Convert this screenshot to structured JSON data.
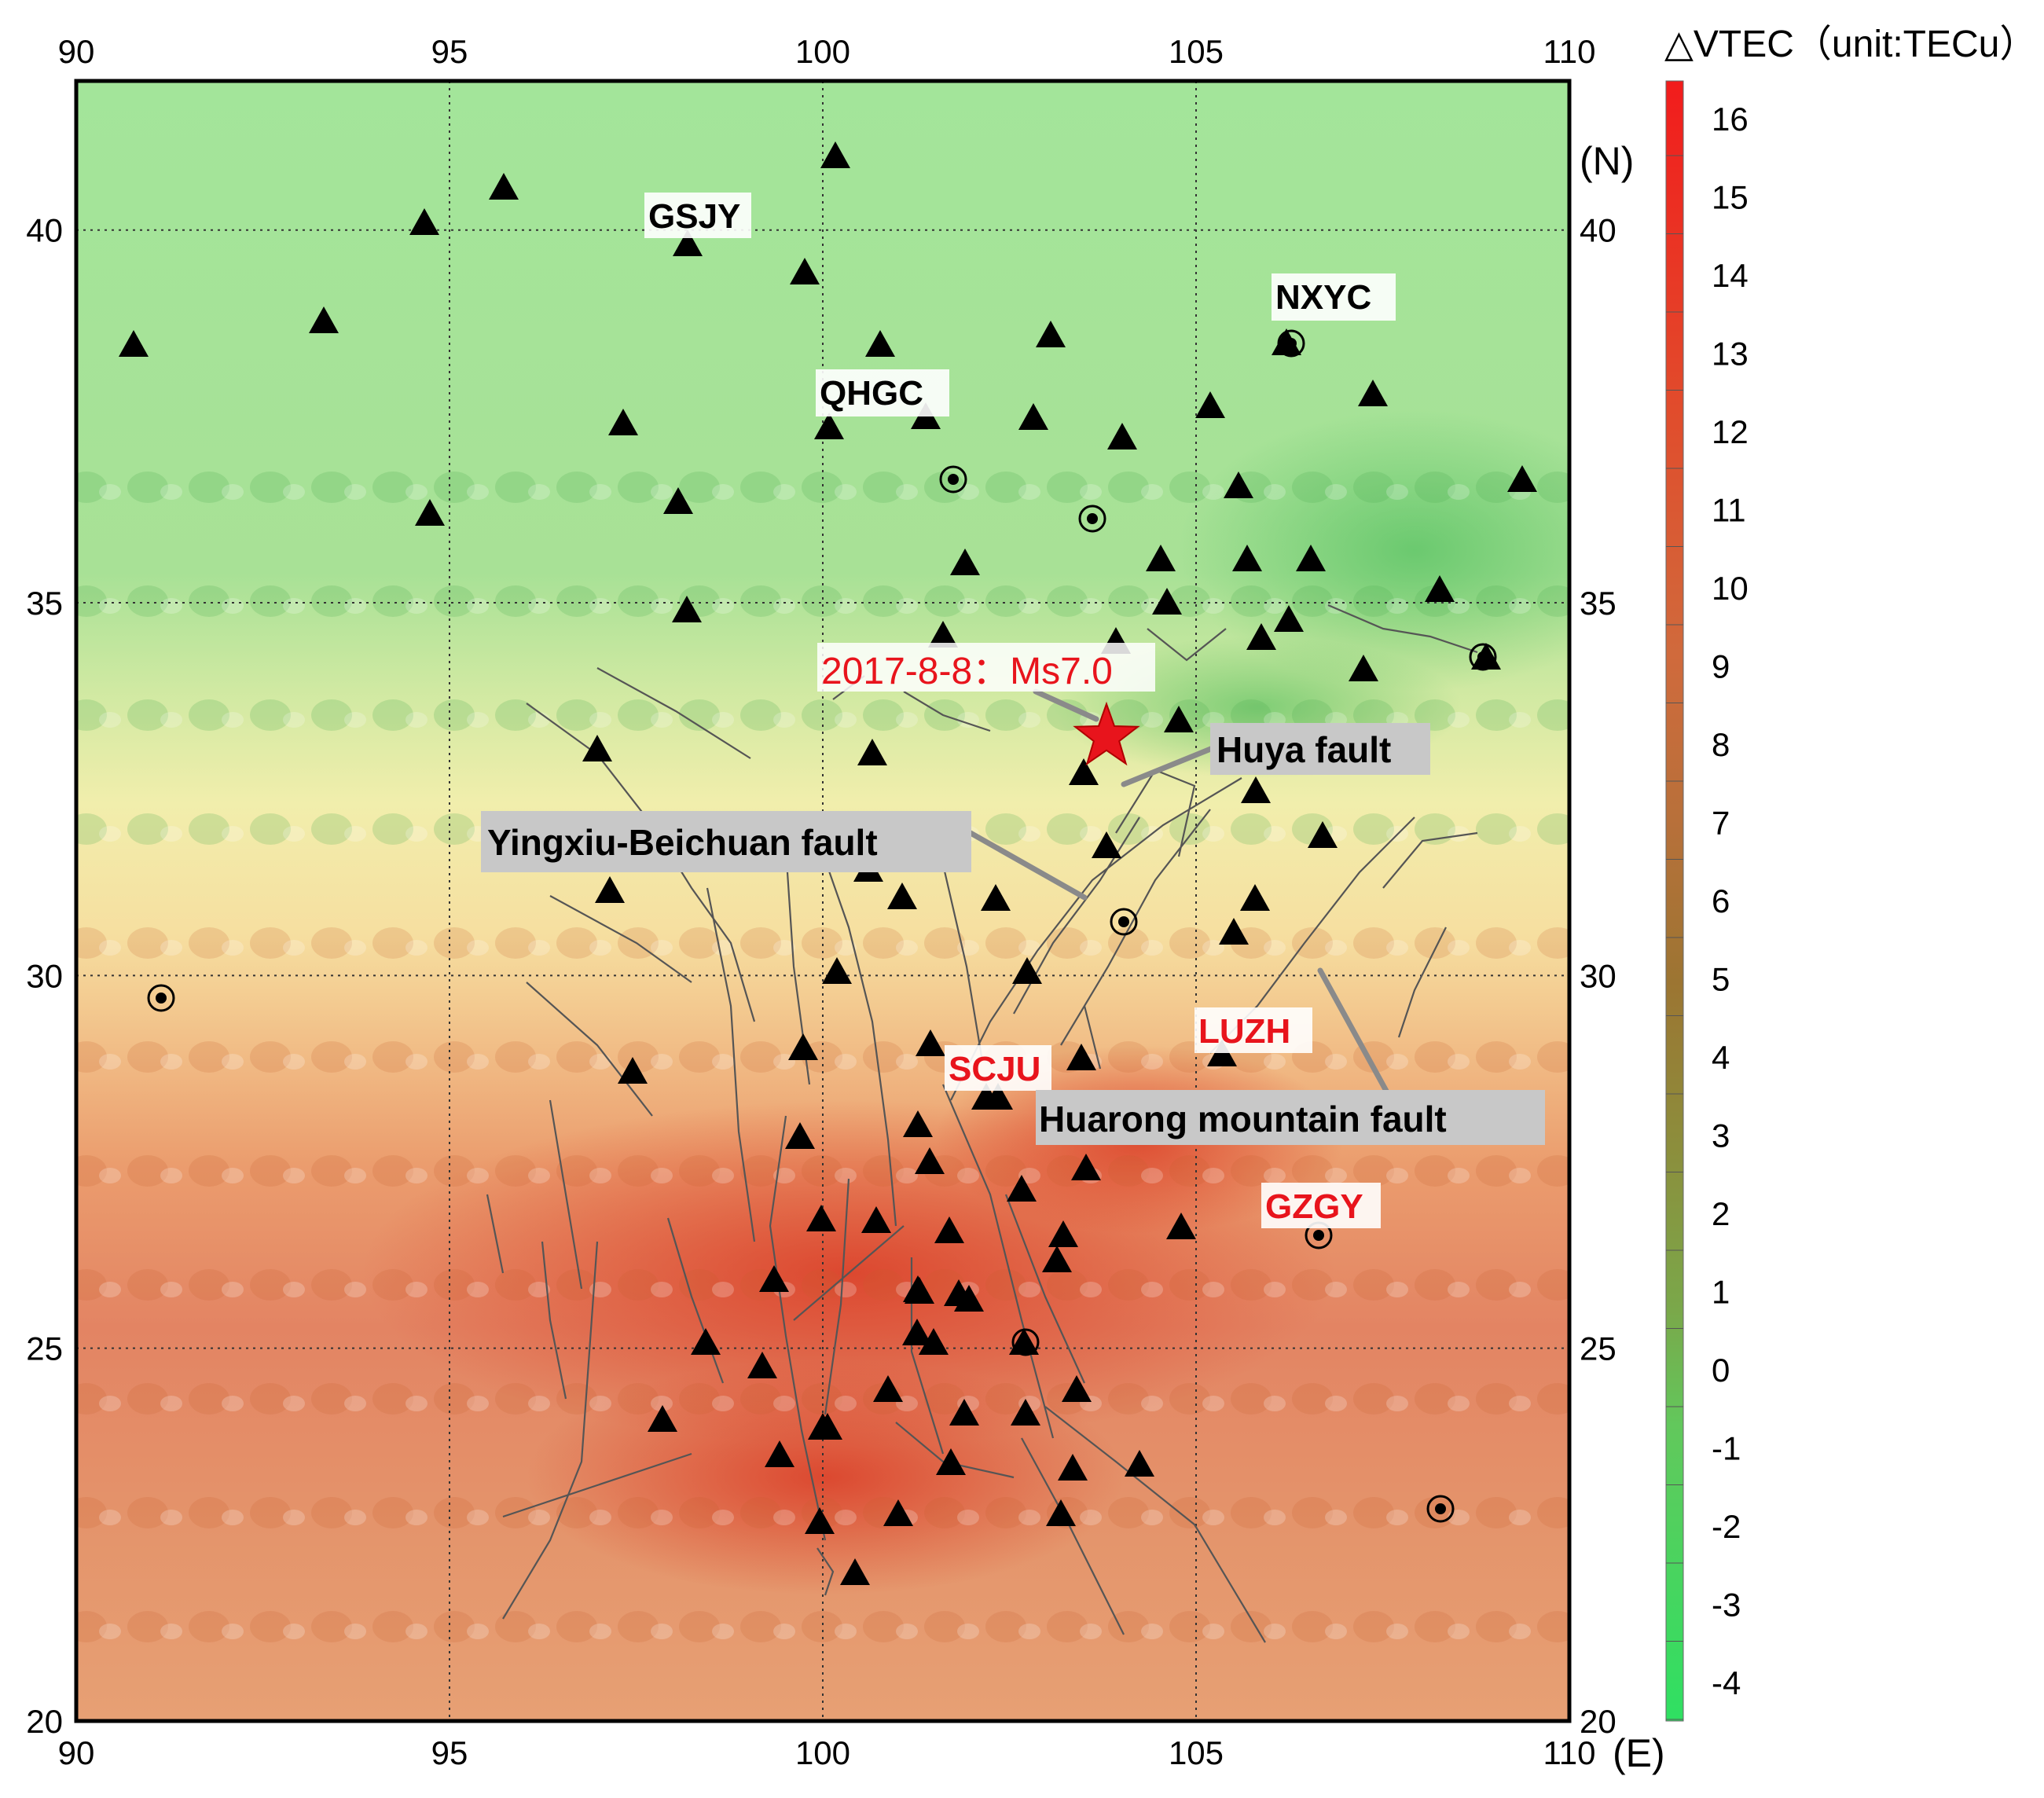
{
  "map": {
    "x_ticks": [
      "90",
      "95",
      "100",
      "105",
      "110"
    ],
    "y_ticks": [
      "20",
      "25",
      "30",
      "35",
      "40"
    ],
    "x_unit": "(E)",
    "y_unit": "(N)",
    "lon_range": [
      90,
      110
    ],
    "lat_range": [
      20,
      42
    ],
    "grid": true,
    "colorbar": {
      "title": "△VTEC（unit:TECu）",
      "ticks": [
        "16",
        "15",
        "14",
        "13",
        "12",
        "11",
        "10",
        "9",
        "8",
        "7",
        "6",
        "5",
        "4",
        "3",
        "2",
        "1",
        "0",
        "-1",
        "-2",
        "-3",
        "-4"
      ]
    },
    "epicenter": {
      "label": "2017-8-8：Ms7.0",
      "lon": 103.8,
      "lat": 33.2,
      "color": "#e8141c"
    },
    "stations": [
      {
        "name": "GSJY",
        "lon": 98.2,
        "lat": 39.8,
        "color": "#000000"
      },
      {
        "name": "QHGC",
        "lon": 100.8,
        "lat": 37.5,
        "color": "#000000"
      },
      {
        "name": "NXYC",
        "lon": 106.2,
        "lat": 38.5,
        "color": "#000000"
      },
      {
        "name": "LUZH",
        "lon": 105.4,
        "lat": 28.9,
        "color": "#e8141c"
      },
      {
        "name": "SCJU",
        "lon": 102.2,
        "lat": 28.5,
        "color": "#e8141c"
      },
      {
        "name": "GZGY",
        "lon": 106.7,
        "lat": 26.5,
        "color": "#e8141c"
      }
    ],
    "faults": [
      {
        "label": "Huya fault"
      },
      {
        "label": "Yingxiu-Beichuan fault"
      },
      {
        "label": "Huarong mountain fault"
      }
    ],
    "colors": {
      "positive": "#d8421f",
      "negative": "#2fd65a",
      "neutral": "#f4f0a8"
    }
  }
}
